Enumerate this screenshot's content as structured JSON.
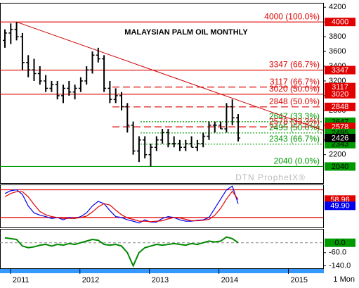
{
  "chart_data": [
    {
      "type": "ohlc",
      "title": "MALAYSIAN PALM OIL MONTHLY",
      "watermark": "DTN ProphetX®",
      "open": [
        3750,
        3850,
        3900,
        3800,
        3450,
        3350,
        3300,
        3200,
        3100,
        3150,
        3000,
        3100,
        3050,
        3100,
        3200,
        3350,
        3550,
        3500,
        3100,
        2950,
        3000,
        2850,
        2600,
        2250,
        2400,
        2200,
        2300,
        2400,
        2500,
        2350,
        2350,
        2300,
        2350,
        2300,
        2350,
        2450,
        2600,
        2600,
        2550,
        2850,
        2700
      ],
      "high": [
        3900,
        3980,
        4000,
        3850,
        3550,
        3500,
        3400,
        3280,
        3200,
        3200,
        3150,
        3200,
        3150,
        3250,
        3400,
        3600,
        3650,
        3550,
        3200,
        3100,
        3050,
        2900,
        2650,
        2450,
        2450,
        2350,
        2450,
        2550,
        2550,
        2450,
        2400,
        2400,
        2450,
        2400,
        2500,
        2650,
        2650,
        2650,
        2900,
        2950,
        2750
      ],
      "low": [
        3650,
        3700,
        3750,
        3350,
        3250,
        3200,
        3150,
        3050,
        3050,
        2950,
        2900,
        3000,
        2950,
        3050,
        3150,
        3300,
        3450,
        3050,
        2900,
        2900,
        2800,
        2500,
        2200,
        2100,
        2150,
        2040,
        2250,
        2350,
        2300,
        2300,
        2250,
        2250,
        2300,
        2250,
        2300,
        2400,
        2500,
        2550,
        2500,
        2600,
        2380
      ],
      "close": [
        3850,
        3900,
        3800,
        3450,
        3350,
        3300,
        3200,
        3100,
        3150,
        3000,
        3100,
        3050,
        3100,
        3200,
        3350,
        3550,
        3500,
        3100,
        2950,
        3000,
        2850,
        2600,
        2250,
        2400,
        2200,
        2300,
        2400,
        2500,
        2350,
        2350,
        2300,
        2350,
        2300,
        2350,
        2450,
        2600,
        2600,
        2550,
        2850,
        2700,
        2426
      ],
      "color": "#000000",
      "trendline": {
        "values": [
          4000,
          2530
        ],
        "color": "#cc0000"
      },
      "levels": [
        {
          "value": 4000,
          "label": "4000 (100.0%)",
          "color": "#e00000",
          "style": "solid"
        },
        {
          "value": 3347,
          "label": "3347 (66.7%)",
          "color": "#e00000",
          "style": "solid"
        },
        {
          "value": 3117,
          "label": "3117 (66.7%)",
          "color": "#e00000",
          "style": "dashed"
        },
        {
          "value": 3020,
          "label": "3020 (50.0%)",
          "color": "#e00000",
          "style": "solid"
        },
        {
          "value": 2848,
          "label": "2848 (50.0%)",
          "color": "#e00000",
          "style": "dashed"
        },
        {
          "value": 2647,
          "label": "2647 (33.3%)",
          "color": "#009900",
          "style": "dotted"
        },
        {
          "value": 2578,
          "label": "2578 (33.3%)",
          "color": "#e00000",
          "style": "dashed"
        },
        {
          "value": 2495,
          "label": "2495 (50.0%)",
          "color": "#009900",
          "style": "dotted"
        },
        {
          "value": 2343,
          "label": "2343 (66.7%)",
          "color": "#009900",
          "style": "dotted"
        },
        {
          "value": 2040,
          "label": "2040 (0.0%)",
          "color": "#009900",
          "style": "solid"
        }
      ],
      "ylim": [
        1815,
        4250
      ],
      "yticks": [
        2200,
        2400,
        2600,
        2800,
        3000,
        3200,
        3400,
        3600,
        3800,
        4000,
        4200
      ],
      "xlim": [
        2010.85,
        2015.5
      ],
      "xticks": [
        2011,
        2012,
        2013,
        2014,
        2015
      ],
      "interval": "1 Mon"
    },
    {
      "type": "line",
      "ylim": [
        0,
        90
      ],
      "levels": [
        80,
        20
      ],
      "level_color": "#e00000",
      "series": [
        {
          "color": "#0000ee",
          "current_label": "49.90",
          "values": [
            72,
            78,
            80,
            70,
            45,
            30,
            25,
            22,
            18,
            20,
            15,
            20,
            18,
            22,
            30,
            45,
            55,
            50,
            35,
            22,
            20,
            15,
            12,
            8,
            15,
            10,
            10,
            18,
            22,
            20,
            15,
            12,
            12,
            14,
            15,
            20,
            40,
            60,
            80,
            88,
            49.9
          ]
        },
        {
          "color": "#e00000",
          "current_label": "58.96",
          "values": [
            65,
            72,
            76,
            76,
            65,
            48,
            33,
            26,
            22,
            20,
            18,
            18,
            18,
            20,
            23,
            32,
            43,
            50,
            47,
            36,
            26,
            19,
            16,
            12,
            12,
            11,
            12,
            13,
            17,
            20,
            19,
            16,
            13,
            13,
            14,
            16,
            25,
            40,
            60,
            77,
            58.96
          ]
        }
      ]
    },
    {
      "type": "line",
      "ylim": [
        -155,
        80
      ],
      "zero_line": {
        "value": 0,
        "label": "0.0"
      },
      "yticks": [
        {
          "value": -60,
          "label": "-60.0"
        },
        {
          "value": -140,
          "label": "-140.0"
        }
      ],
      "series": [
        {
          "color": "#008800",
          "values": [
            30,
            25,
            20,
            -20,
            -30,
            -25,
            -15,
            -10,
            -20,
            -10,
            -15,
            -5,
            -10,
            0,
            10,
            20,
            15,
            -10,
            -15,
            -10,
            -20,
            -60,
            -140,
            -60,
            -30,
            -20,
            -10,
            -15,
            -10,
            -5,
            -10,
            -15,
            -5,
            -10,
            0,
            10,
            5,
            10,
            35,
            25,
            0
          ]
        }
      ]
    }
  ]
}
